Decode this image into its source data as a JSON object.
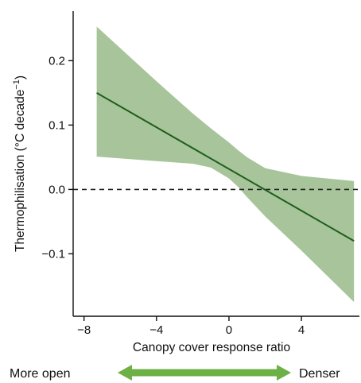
{
  "chart_data": {
    "type": "line",
    "xlabel": "Canopy cover response ratio",
    "ylabel": "Thermophilisation (°C decade",
    "ylabel_superscript": "−1",
    "ylabel_close": ")",
    "xlim": [
      -8.6,
      7.2
    ],
    "ylim": [
      -0.197,
      0.277
    ],
    "x_ticks": [
      -8,
      -4,
      0,
      4
    ],
    "x_tick_labels": [
      "−8",
      "−4",
      "0",
      "4"
    ],
    "y_ticks": [
      -0.1,
      0.0,
      0.1,
      0.2
    ],
    "y_tick_labels": [
      "−0.1",
      "0.0",
      "0.1",
      "0.2"
    ],
    "series": [
      {
        "x": [
          -7.3,
          6.9
        ],
        "y": [
          0.15,
          -0.08
        ]
      }
    ],
    "ci_band": {
      "x": [
        -7.3,
        -4.0,
        -2.0,
        -1.0,
        0.0,
        0.5,
        1.0,
        2.0,
        4.0,
        6.9
      ],
      "upper": [
        0.253,
        0.168,
        0.118,
        0.095,
        0.073,
        0.061,
        0.05,
        0.033,
        0.021,
        0.013
      ],
      "lower": [
        0.051,
        0.044,
        0.04,
        0.034,
        0.017,
        0.004,
        -0.012,
        -0.042,
        -0.095,
        -0.175
      ]
    },
    "reference_line": {
      "y": 0.0,
      "style": "dashed"
    },
    "grid": false,
    "colors": {
      "line": "#1d5e1d",
      "band": "#a8c49a",
      "reference": "#222222",
      "arrow": "#6cb046"
    }
  },
  "direction": {
    "left": "More open",
    "right": "Denser"
  }
}
